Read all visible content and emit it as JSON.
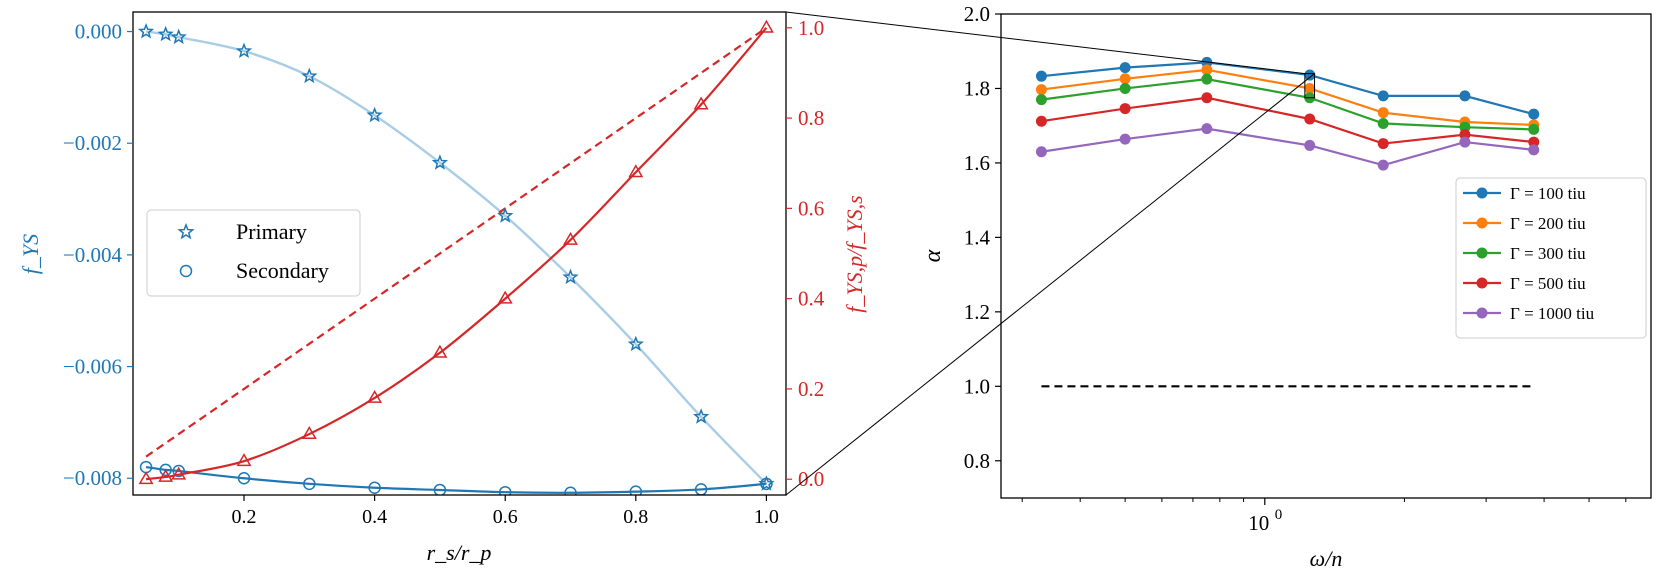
{
  "chart_data": [
    {
      "type": "line",
      "xlabel": "r_s/r_p",
      "ylabel": "f_YS",
      "y2label": "f_YS,p/f_YS,s",
      "xlim": [
        0.03,
        1.03
      ],
      "ylim": [
        -0.0083,
        0.00035
      ],
      "y2lim": [
        -0.035,
        1.035
      ],
      "xticks": [
        0.2,
        0.4,
        0.6,
        0.8,
        1.0
      ],
      "xtick_labels": [
        "0.2",
        "0.4",
        "0.6",
        "0.8",
        "1.0"
      ],
      "yticks": [
        0.0,
        -0.002,
        -0.004,
        -0.006,
        -0.008
      ],
      "ytick_labels": [
        "0.000",
        "−0.002",
        "−0.004",
        "−0.006",
        "−0.008"
      ],
      "y2ticks": [
        0.0,
        0.2,
        0.4,
        0.6,
        0.8,
        1.0
      ],
      "y2tick_labels": [
        "0.0",
        "0.2",
        "0.4",
        "0.6",
        "0.8",
        "1.0"
      ],
      "grid": false,
      "legend_position": "center-left",
      "colors": {
        "left_axis": "#1f77b4",
        "right_axis": "#d62728",
        "fit_line": "#a9cde6"
      },
      "series": [
        {
          "name": "Primary",
          "axis": "left",
          "marker": "star",
          "x": [
            0.05,
            0.08,
            0.1,
            0.2,
            0.3,
            0.4,
            0.5,
            0.6,
            0.7,
            0.8,
            0.9,
            1.0
          ],
          "y": [
            0.0,
            -5e-05,
            -0.0001,
            -0.00035,
            -0.0008,
            -0.0015,
            -0.00235,
            -0.0033,
            -0.0044,
            -0.0056,
            -0.0069,
            -0.0081
          ],
          "fit": true
        },
        {
          "name": "Secondary",
          "axis": "left",
          "marker": "circle",
          "x": [
            0.05,
            0.08,
            0.1,
            0.2,
            0.3,
            0.4,
            0.5,
            0.6,
            0.7,
            0.8,
            0.9,
            1.0
          ],
          "y": [
            -0.0078,
            -0.00785,
            -0.00787,
            -0.008,
            -0.0081,
            -0.00817,
            -0.00821,
            -0.00825,
            -0.00826,
            -0.00824,
            -0.0082,
            -0.0081
          ],
          "fit": true
        },
        {
          "axis": "right",
          "marker": "triangle",
          "x": [
            0.05,
            0.08,
            0.1,
            0.2,
            0.3,
            0.4,
            0.5,
            0.6,
            0.7,
            0.8,
            0.9,
            1.0
          ],
          "y": [
            0.0,
            0.005,
            0.01,
            0.04,
            0.1,
            0.18,
            0.28,
            0.4,
            0.53,
            0.68,
            0.83,
            1.0
          ],
          "fit": true
        },
        {
          "axis": "right",
          "style": "dashed",
          "x": [
            0.05,
            1.0
          ],
          "y": [
            0.05,
            1.0
          ]
        }
      ]
    },
    {
      "type": "line",
      "xlabel": "ω/n",
      "ylabel": "α",
      "xscale": "log",
      "xlim": [
        0.27,
        6.8
      ],
      "ylim": [
        0.7,
        2.0
      ],
      "yticks": [
        0.8,
        1.0,
        1.2,
        1.4,
        1.6,
        1.8,
        2.0
      ],
      "ytick_labels": [
        "0.8",
        "1.0",
        "1.2",
        "1.4",
        "1.6",
        "1.8",
        "2.0"
      ],
      "xticks_major": [
        1
      ],
      "xtick_major_label_base": "10",
      "xtick_major_label_exp": "0",
      "xticks_minor": [
        0.3,
        0.4,
        0.5,
        0.6,
        0.7,
        0.8,
        0.9,
        2,
        3,
        4,
        5,
        6
      ],
      "grid": false,
      "legend_position": "center-right",
      "x": [
        0.33,
        0.5,
        0.75,
        1.25,
        1.8,
        2.7,
        3.8
      ],
      "series": [
        {
          "name": "Γ = 100 tiu",
          "color": "#1f77b4",
          "values": [
            1.833,
            1.856,
            1.87,
            1.836,
            1.78,
            1.78,
            1.731
          ]
        },
        {
          "name": "Γ = 200 tiu",
          "color": "#ff7f0e",
          "values": [
            1.797,
            1.826,
            1.85,
            1.8,
            1.735,
            1.71,
            1.702
          ]
        },
        {
          "name": "Γ = 300 tiu",
          "color": "#2ca02c",
          "values": [
            1.77,
            1.8,
            1.825,
            1.775,
            1.706,
            1.696,
            1.69
          ]
        },
        {
          "name": "Γ = 500 tiu",
          "color": "#d62728",
          "values": [
            1.712,
            1.746,
            1.775,
            1.718,
            1.652,
            1.676,
            1.656
          ]
        },
        {
          "name": "Γ = 1000 tiu",
          "color": "#9467bd",
          "values": [
            1.63,
            1.664,
            1.692,
            1.647,
            1.594,
            1.656,
            1.635
          ]
        }
      ],
      "reference_line": {
        "y": 1.0,
        "style": "dashed",
        "color": "#000000"
      },
      "zoom_box": {
        "x": [
          1.22,
          1.28
        ],
        "y": [
          1.775,
          1.84
        ]
      }
    }
  ]
}
